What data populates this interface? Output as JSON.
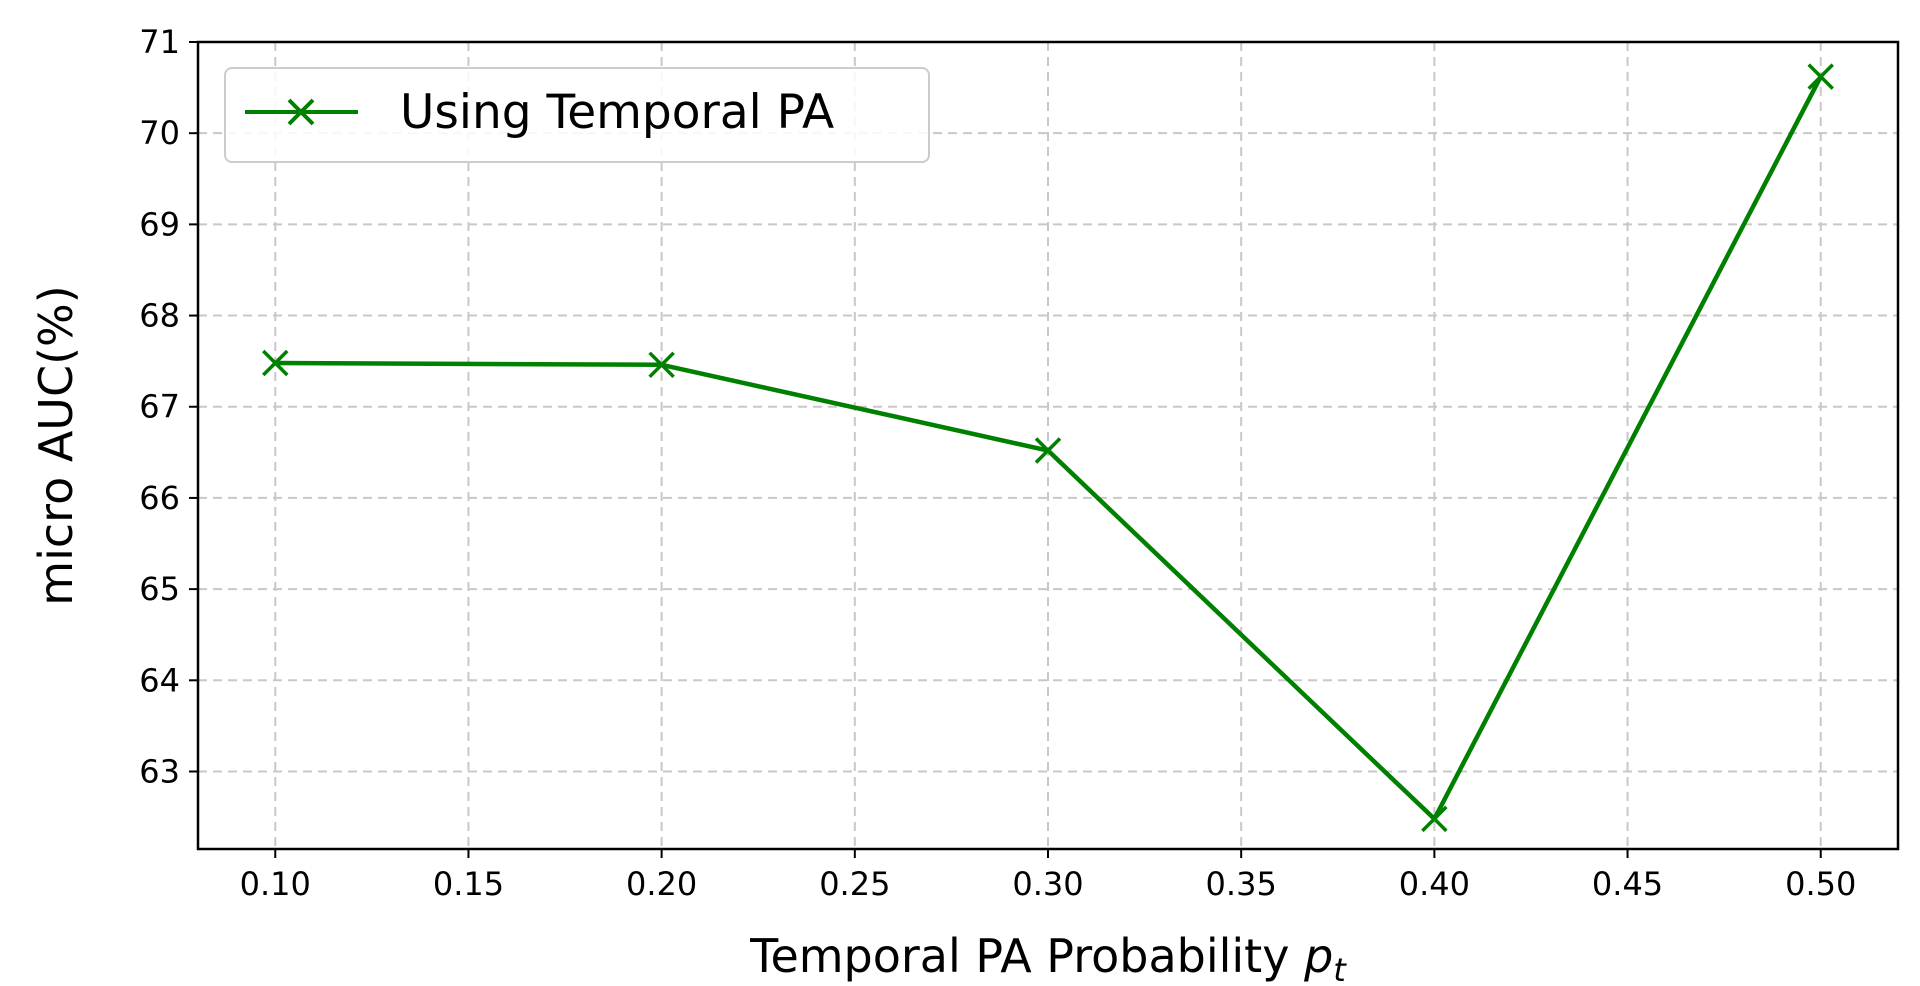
{
  "chart_data": {
    "type": "line",
    "x": [
      0.1,
      0.2,
      0.3,
      0.4,
      0.5
    ],
    "series": [
      {
        "name": "Using Temporal PA",
        "values": [
          67.48,
          67.46,
          66.52,
          62.48,
          70.62
        ],
        "color": "#008000",
        "marker": "x"
      }
    ],
    "xlabel": "Temporal PA Probability ",
    "xlabel_math": "p",
    "xlabel_math_sub": "t",
    "ylabel": "micro AUC(%)",
    "xlim": [
      0.08,
      0.52
    ],
    "ylim": [
      62.15,
      71.0
    ],
    "xticks": [
      0.1,
      0.15,
      0.2,
      0.25,
      0.3,
      0.35,
      0.4,
      0.45,
      0.5
    ],
    "xtick_labels": [
      "0.10",
      "0.15",
      "0.20",
      "0.25",
      "0.30",
      "0.35",
      "0.40",
      "0.45",
      "0.50"
    ],
    "yticks": [
      63,
      64,
      65,
      66,
      67,
      68,
      69,
      70,
      71
    ],
    "ytick_labels": [
      "63",
      "64",
      "65",
      "66",
      "67",
      "68",
      "69",
      "70",
      "71"
    ],
    "grid": true,
    "legend_position": "top-left"
  }
}
